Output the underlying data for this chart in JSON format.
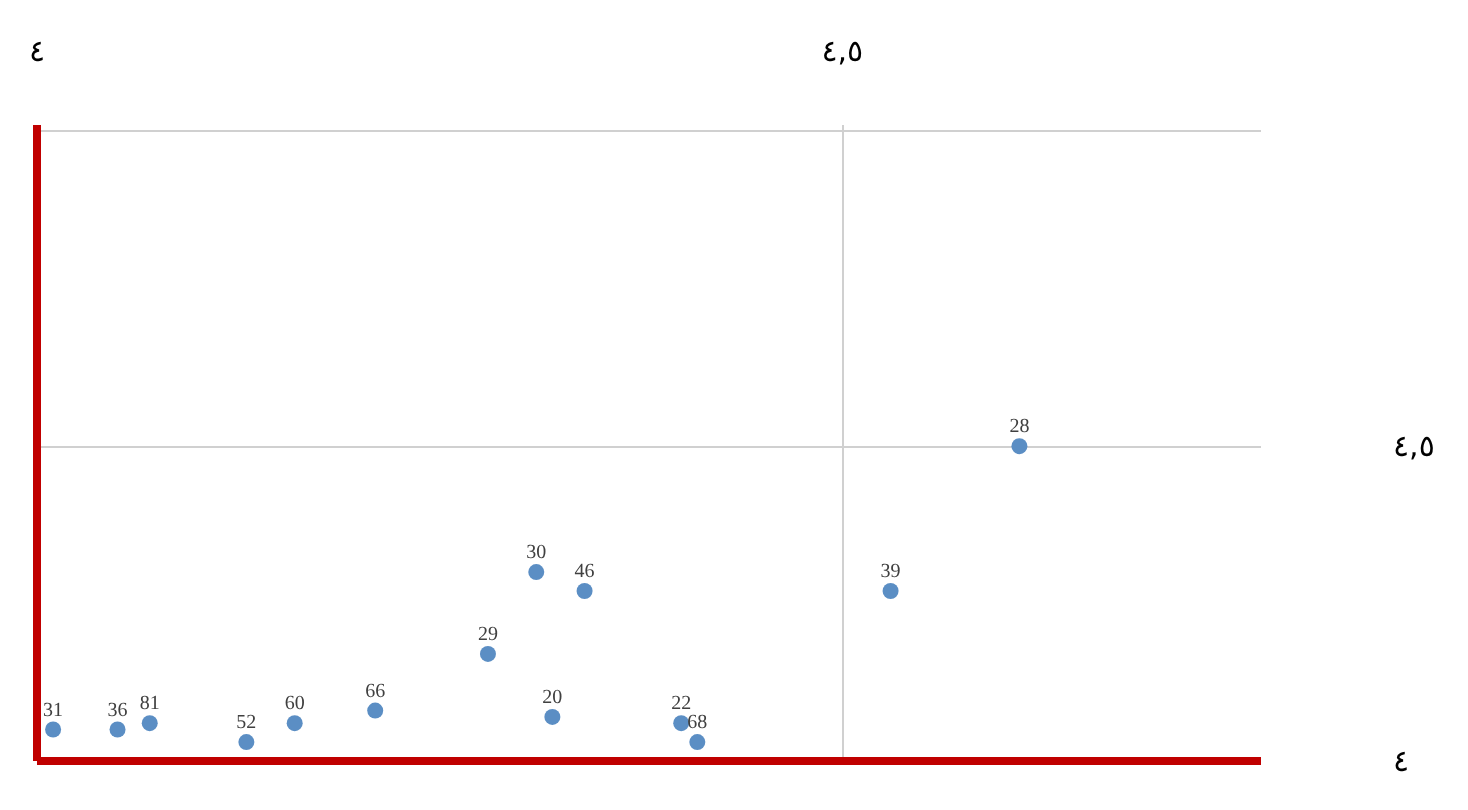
{
  "chart_data": {
    "type": "scatter",
    "x": [
      4.01,
      4.05,
      4.07,
      4.13,
      4.16,
      4.21,
      4.28,
      4.31,
      4.34,
      4.32,
      4.4,
      4.41,
      4.53,
      4.61
    ],
    "series": [
      {
        "color": "#5b8ec4",
        "values": [
          4.05,
          4.05,
          4.06,
          4.03,
          4.06,
          4.08,
          4.17,
          4.3,
          4.27,
          4.07,
          4.06,
          4.03,
          4.27,
          4.5
        ]
      }
    ],
    "annotations": [
      {
        "text": "31",
        "x": 4.01,
        "y": 4.05
      },
      {
        "text": "36",
        "x": 4.05,
        "y": 4.05
      },
      {
        "text": "81",
        "x": 4.07,
        "y": 4.06
      },
      {
        "text": "52",
        "x": 4.13,
        "y": 4.03
      },
      {
        "text": "60",
        "x": 4.16,
        "y": 4.06
      },
      {
        "text": "66",
        "x": 4.21,
        "y": 4.08
      },
      {
        "text": "29",
        "x": 4.28,
        "y": 4.17
      },
      {
        "text": "30",
        "x": 4.31,
        "y": 4.3
      },
      {
        "text": "46",
        "x": 4.34,
        "y": 4.27
      },
      {
        "text": "20",
        "x": 4.32,
        "y": 4.07
      },
      {
        "text": "22",
        "x": 4.4,
        "y": 4.06
      },
      {
        "text": "68",
        "x": 4.41,
        "y": 4.03
      },
      {
        "text": "39",
        "x": 4.53,
        "y": 4.27
      },
      {
        "text": "28",
        "x": 4.61,
        "y": 4.5
      }
    ],
    "xlim": [
      4,
      4.76
    ],
    "xticks": [
      {
        "value": 4,
        "label": "٤"
      },
      {
        "value": 4.5,
        "label": "٤,٥"
      }
    ],
    "ylim": [
      4,
      5.01
    ],
    "yticks": [
      {
        "value": 4,
        "label": "٤"
      },
      {
        "value": 4.5,
        "label": "٤,٥"
      },
      {
        "value": 5,
        "label": null
      }
    ],
    "grid": true,
    "marker": "circle"
  }
}
